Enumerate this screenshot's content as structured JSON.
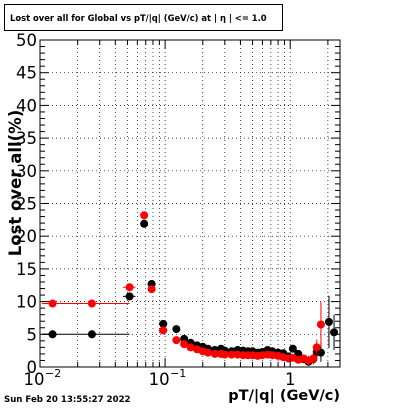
{
  "title": "Lost over all for Global vs pT/|q| (GeV/c) at |  η | <= 1.0",
  "timestamp": "Sun Feb 20 13:55:27 2022",
  "chart_data": {
    "type": "scatter",
    "title": "Lost over all for Global vs pT/|q| (GeV/c) at |  η | <= 1.0",
    "xlabel": "pT/|q| (GeV/c)",
    "ylabel": "Lost over all(%)",
    "x_scale": "log",
    "xlim": [
      0.01,
      2.5
    ],
    "ylim": [
      0,
      50
    ],
    "grid": true,
    "x_tick_labels": [
      {
        "value": 0.01,
        "label": "10",
        "sup": "−2"
      },
      {
        "value": 0.1,
        "label": "10",
        "sup": "−1"
      },
      {
        "value": 1,
        "label": "1",
        "sup": ""
      }
    ],
    "y_ticks": [
      0,
      5,
      10,
      15,
      20,
      25,
      30,
      35,
      40,
      45,
      50
    ],
    "colors": {
      "black_series": "#000000",
      "red_series": "#ff0000"
    },
    "series": [
      {
        "color": "#000000",
        "points": [
          {
            "x": 0.0126,
            "y": 5.0,
            "xlo": 0.0104,
            "xhi": 0.0126,
            "elo": 0.6,
            "ehi": 0.6
          },
          {
            "x": 0.026,
            "y": 5.0,
            "xlo": 0.0104,
            "xhi": 0.052,
            "elo": 0.6,
            "ehi": 0.6
          },
          {
            "x": 0.052,
            "y": 10.8,
            "xlo": 0.046,
            "xhi": 0.058,
            "elo": 0.6,
            "ehi": 0.6
          },
          {
            "x": 0.068,
            "y": 21.9,
            "xlo": 0.065,
            "xhi": 0.071,
            "elo": 0.6,
            "ehi": 0.6
          },
          {
            "x": 0.078,
            "y": 12.7,
            "xlo": 0.073,
            "xhi": 0.083,
            "elo": 0.6,
            "ehi": 0.6
          },
          {
            "x": 0.0966,
            "y": 6.6,
            "xlo": 0.089,
            "xhi": 0.104,
            "elo": 0.5,
            "ehi": 0.5
          },
          {
            "x": 0.123,
            "y": 5.8,
            "xlo": 0.115,
            "xhi": 0.131,
            "elo": 0.4,
            "ehi": 0.4
          },
          {
            "x": 0.142,
            "y": 4.3,
            "xlo": 0.138,
            "xhi": 0.146,
            "elo": 0.3,
            "ehi": 0.3
          },
          {
            "x": 0.16,
            "y": 3.7,
            "xlo": 0.155,
            "xhi": 0.165,
            "elo": 0.3,
            "ehi": 0.3
          },
          {
            "x": 0.18,
            "y": 3.3,
            "xlo": 0.175,
            "xhi": 0.185,
            "elo": 0.3,
            "ehi": 0.3
          },
          {
            "x": 0.2,
            "y": 3.1,
            "xlo": 0.195,
            "xhi": 0.205,
            "elo": 0.3,
            "ehi": 0.3
          },
          {
            "x": 0.22,
            "y": 2.8,
            "xlo": 0.215,
            "xhi": 0.225,
            "elo": 0.3,
            "ehi": 0.3
          },
          {
            "x": 0.25,
            "y": 2.6,
            "xlo": 0.24,
            "xhi": 0.26,
            "elo": 0.3,
            "ehi": 0.3
          },
          {
            "x": 0.28,
            "y": 2.8,
            "xlo": 0.27,
            "xhi": 0.29,
            "elo": 0.3,
            "ehi": 0.3
          },
          {
            "x": 0.3,
            "y": 2.5,
            "xlo": 0.29,
            "xhi": 0.31,
            "elo": 0.3,
            "ehi": 0.3
          },
          {
            "x": 0.34,
            "y": 2.4,
            "xlo": 0.33,
            "xhi": 0.35,
            "elo": 0.3,
            "ehi": 0.3
          },
          {
            "x": 0.38,
            "y": 2.6,
            "xlo": 0.37,
            "xhi": 0.39,
            "elo": 0.3,
            "ehi": 0.3
          },
          {
            "x": 0.42,
            "y": 2.5,
            "xlo": 0.41,
            "xhi": 0.43,
            "elo": 0.3,
            "ehi": 0.3
          },
          {
            "x": 0.46,
            "y": 2.4,
            "xlo": 0.45,
            "xhi": 0.47,
            "elo": 0.3,
            "ehi": 0.3
          },
          {
            "x": 0.5,
            "y": 2.4,
            "xlo": 0.49,
            "xhi": 0.51,
            "elo": 0.3,
            "ehi": 0.3
          },
          {
            "x": 0.55,
            "y": 2.2,
            "xlo": 0.54,
            "xhi": 0.56,
            "elo": 0.3,
            "ehi": 0.3
          },
          {
            "x": 0.6,
            "y": 2.3,
            "xlo": 0.59,
            "xhi": 0.61,
            "elo": 0.3,
            "ehi": 0.3
          },
          {
            "x": 0.66,
            "y": 2.6,
            "xlo": 0.65,
            "xhi": 0.67,
            "elo": 0.3,
            "ehi": 0.3
          },
          {
            "x": 0.72,
            "y": 2.4,
            "xlo": 0.71,
            "xhi": 0.73,
            "elo": 0.3,
            "ehi": 0.3
          },
          {
            "x": 0.8,
            "y": 2.2,
            "xlo": 0.79,
            "xhi": 0.81,
            "elo": 0.3,
            "ehi": 0.3
          },
          {
            "x": 0.88,
            "y": 2.1,
            "xlo": 0.87,
            "xhi": 0.89,
            "elo": 0.3,
            "ehi": 0.3
          },
          {
            "x": 0.97,
            "y": 1.6,
            "xlo": 0.96,
            "xhi": 0.98,
            "elo": 0.4,
            "ehi": 0.4
          },
          {
            "x": 1.05,
            "y": 2.8,
            "xlo": 1.04,
            "xhi": 1.06,
            "elo": 0.6,
            "ehi": 0.6
          },
          {
            "x": 1.16,
            "y": 2.0,
            "xlo": 1.15,
            "xhi": 1.17,
            "elo": 0.6,
            "ehi": 0.6
          },
          {
            "x": 1.28,
            "y": 1.2,
            "xlo": 1.27,
            "xhi": 1.29,
            "elo": 0.6,
            "ehi": 0.6
          },
          {
            "x": 1.4,
            "y": 0.8,
            "xlo": 1.39,
            "xhi": 1.41,
            "elo": 0.6,
            "ehi": 0.6
          },
          {
            "x": 1.53,
            "y": 1.2,
            "xlo": 1.52,
            "xhi": 1.54,
            "elo": 0.8,
            "ehi": 0.8
          },
          {
            "x": 1.63,
            "y": 2.3,
            "xlo": 1.62,
            "xhi": 1.64,
            "elo": 1.2,
            "ehi": 1.2
          },
          {
            "x": 1.76,
            "y": 2.2,
            "xlo": 1.75,
            "xhi": 1.77,
            "elo": 1.4,
            "ehi": 1.4
          },
          {
            "x": 2.04,
            "y": 6.9,
            "xlo": 2.03,
            "xhi": 2.05,
            "elo": 4.0,
            "ehi": 4.0
          },
          {
            "x": 2.24,
            "y": 5.3,
            "xlo": 2.23,
            "xhi": 2.25,
            "elo": 2.7,
            "ehi": 2.7
          }
        ]
      },
      {
        "color": "#ff0000",
        "points": [
          {
            "x": 0.0126,
            "y": 9.7,
            "xlo": 0.0104,
            "xhi": 0.0126,
            "elo": 0.6,
            "ehi": 0.6
          },
          {
            "x": 0.026,
            "y": 9.7,
            "xlo": 0.0104,
            "xhi": 0.052,
            "elo": 0.6,
            "ehi": 0.6
          },
          {
            "x": 0.052,
            "y": 12.2,
            "xlo": 0.046,
            "xhi": 0.058,
            "elo": 0.6,
            "ehi": 0.6
          },
          {
            "x": 0.068,
            "y": 23.2,
            "xlo": 0.065,
            "xhi": 0.071,
            "elo": 0.6,
            "ehi": 0.6
          },
          {
            "x": 0.078,
            "y": 11.9,
            "xlo": 0.073,
            "xhi": 0.083,
            "elo": 0.6,
            "ehi": 0.6
          },
          {
            "x": 0.0966,
            "y": 5.6,
            "xlo": 0.089,
            "xhi": 0.104,
            "elo": 0.5,
            "ehi": 0.5
          },
          {
            "x": 0.123,
            "y": 4.1,
            "xlo": 0.115,
            "xhi": 0.131,
            "elo": 0.4,
            "ehi": 0.4
          },
          {
            "x": 0.142,
            "y": 3.5,
            "xlo": 0.138,
            "xhi": 0.146,
            "elo": 0.3,
            "ehi": 0.3
          },
          {
            "x": 0.16,
            "y": 3.0,
            "xlo": 0.155,
            "xhi": 0.165,
            "elo": 0.3,
            "ehi": 0.3
          },
          {
            "x": 0.18,
            "y": 2.7,
            "xlo": 0.175,
            "xhi": 0.185,
            "elo": 0.3,
            "ehi": 0.3
          },
          {
            "x": 0.2,
            "y": 2.4,
            "xlo": 0.195,
            "xhi": 0.205,
            "elo": 0.3,
            "ehi": 0.3
          },
          {
            "x": 0.22,
            "y": 2.2,
            "xlo": 0.215,
            "xhi": 0.225,
            "elo": 0.3,
            "ehi": 0.3
          },
          {
            "x": 0.25,
            "y": 2.0,
            "xlo": 0.24,
            "xhi": 0.26,
            "elo": 0.3,
            "ehi": 0.3
          },
          {
            "x": 0.28,
            "y": 2.0,
            "xlo": 0.27,
            "xhi": 0.29,
            "elo": 0.3,
            "ehi": 0.3
          },
          {
            "x": 0.3,
            "y": 1.9,
            "xlo": 0.29,
            "xhi": 0.31,
            "elo": 0.3,
            "ehi": 0.3
          },
          {
            "x": 0.34,
            "y": 1.9,
            "xlo": 0.33,
            "xhi": 0.35,
            "elo": 0.3,
            "ehi": 0.3
          },
          {
            "x": 0.38,
            "y": 1.9,
            "xlo": 0.37,
            "xhi": 0.39,
            "elo": 0.3,
            "ehi": 0.3
          },
          {
            "x": 0.42,
            "y": 1.8,
            "xlo": 0.41,
            "xhi": 0.43,
            "elo": 0.3,
            "ehi": 0.3
          },
          {
            "x": 0.46,
            "y": 1.8,
            "xlo": 0.45,
            "xhi": 0.47,
            "elo": 0.3,
            "ehi": 0.3
          },
          {
            "x": 0.5,
            "y": 1.8,
            "xlo": 0.49,
            "xhi": 0.51,
            "elo": 0.3,
            "ehi": 0.3
          },
          {
            "x": 0.55,
            "y": 1.7,
            "xlo": 0.54,
            "xhi": 0.56,
            "elo": 0.3,
            "ehi": 0.3
          },
          {
            "x": 0.6,
            "y": 1.8,
            "xlo": 0.59,
            "xhi": 0.61,
            "elo": 0.3,
            "ehi": 0.3
          },
          {
            "x": 0.66,
            "y": 1.9,
            "xlo": 0.65,
            "xhi": 0.67,
            "elo": 0.3,
            "ehi": 0.3
          },
          {
            "x": 0.72,
            "y": 1.8,
            "xlo": 0.71,
            "xhi": 0.73,
            "elo": 0.3,
            "ehi": 0.3
          },
          {
            "x": 0.8,
            "y": 1.7,
            "xlo": 0.79,
            "xhi": 0.81,
            "elo": 0.3,
            "ehi": 0.3
          },
          {
            "x": 0.88,
            "y": 1.5,
            "xlo": 0.87,
            "xhi": 0.89,
            "elo": 0.3,
            "ehi": 0.3
          },
          {
            "x": 0.97,
            "y": 1.3,
            "xlo": 0.96,
            "xhi": 0.98,
            "elo": 0.4,
            "ehi": 0.4
          },
          {
            "x": 1.05,
            "y": 1.4,
            "xlo": 1.04,
            "xhi": 1.06,
            "elo": 0.5,
            "ehi": 0.5
          },
          {
            "x": 1.16,
            "y": 1.1,
            "xlo": 1.15,
            "xhi": 1.17,
            "elo": 0.5,
            "ehi": 0.5
          },
          {
            "x": 1.28,
            "y": 1.3,
            "xlo": 1.27,
            "xhi": 1.29,
            "elo": 0.6,
            "ehi": 0.6
          },
          {
            "x": 1.4,
            "y": 1.0,
            "xlo": 1.39,
            "xhi": 1.41,
            "elo": 0.7,
            "ehi": 0.7
          },
          {
            "x": 1.53,
            "y": 1.3,
            "xlo": 1.52,
            "xhi": 1.54,
            "elo": 0.9,
            "ehi": 0.9
          },
          {
            "x": 1.63,
            "y": 3.0,
            "xlo": 1.62,
            "xhi": 1.64,
            "elo": 1.2,
            "ehi": 1.2
          },
          {
            "x": 1.76,
            "y": 6.5,
            "xlo": 1.75,
            "xhi": 1.77,
            "elo": 3.5,
            "ehi": 3.5
          }
        ]
      }
    ]
  }
}
